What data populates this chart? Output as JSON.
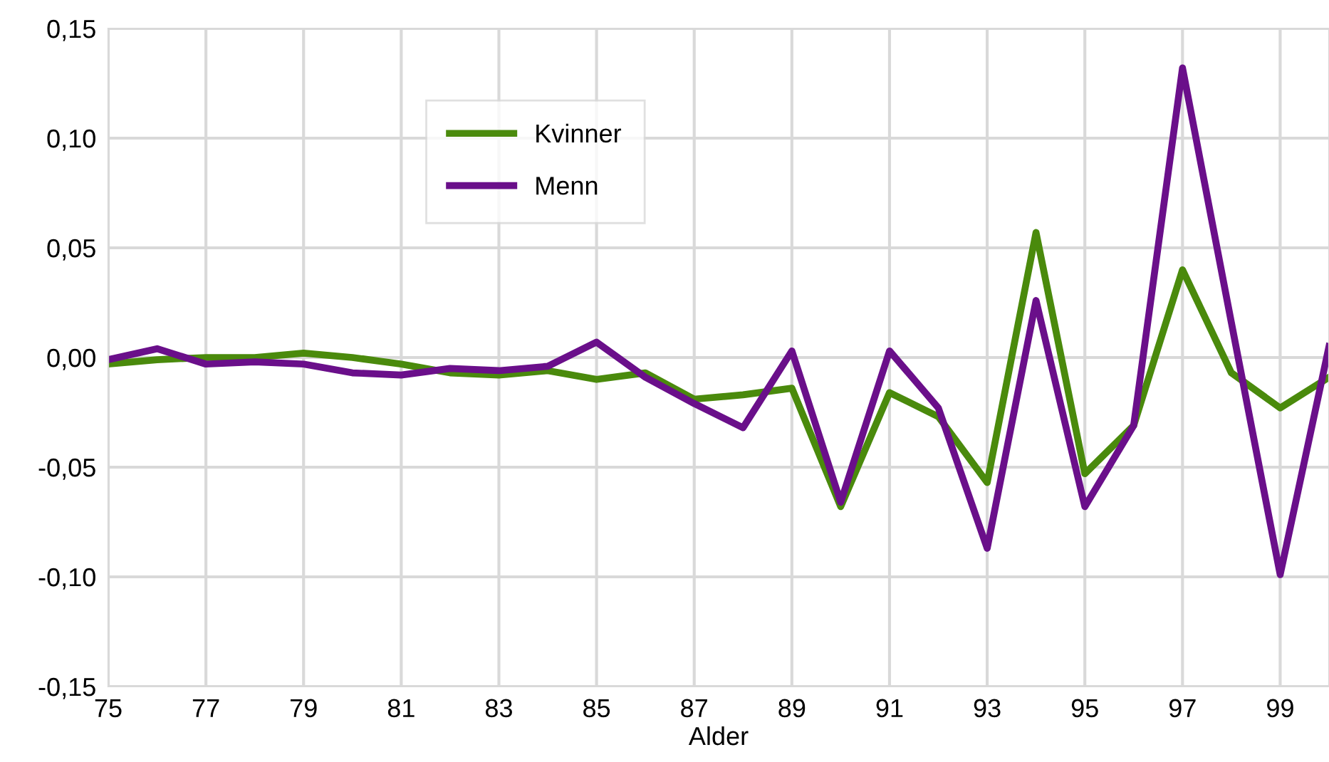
{
  "chart_data": {
    "type": "line",
    "xlabel": "Alder",
    "x": [
      75,
      76,
      77,
      78,
      79,
      80,
      81,
      82,
      83,
      84,
      85,
      86,
      87,
      88,
      89,
      90,
      91,
      92,
      93,
      94,
      95,
      96,
      97,
      98,
      99,
      100
    ],
    "series": [
      {
        "name": "Kvinner",
        "color": "#4a8a0c",
        "values": [
          -0.003,
          -0.001,
          0.0,
          0.0,
          0.002,
          0.0,
          -0.003,
          -0.007,
          -0.008,
          -0.006,
          -0.01,
          -0.007,
          -0.019,
          -0.017,
          -0.014,
          -0.068,
          -0.016,
          -0.027,
          -0.057,
          0.057,
          -0.053,
          -0.031,
          0.04,
          -0.007,
          -0.023,
          -0.009
        ]
      },
      {
        "name": "Menn",
        "color": "#6a0f8a",
        "values": [
          -0.001,
          0.004,
          -0.003,
          -0.002,
          -0.003,
          -0.007,
          -0.008,
          -0.005,
          -0.006,
          -0.004,
          0.007,
          -0.009,
          -0.021,
          -0.032,
          0.003,
          -0.066,
          0.003,
          -0.023,
          -0.087,
          0.026,
          -0.068,
          -0.031,
          0.132,
          0.016,
          -0.099,
          0.005
        ]
      }
    ],
    "xlim": [
      75,
      100
    ],
    "xticks": [
      75,
      77,
      79,
      81,
      83,
      85,
      87,
      89,
      91,
      93,
      95,
      97,
      99
    ],
    "ylim": [
      -0.15,
      0.15
    ],
    "yticks": [
      {
        "value": -0.15,
        "label": "-0,15"
      },
      {
        "value": -0.1,
        "label": "-0,10"
      },
      {
        "value": -0.05,
        "label": "-0,05"
      },
      {
        "value": 0,
        "label": "0,00"
      },
      {
        "value": 0.05,
        "label": "0,05"
      },
      {
        "value": 0.1,
        "label": "0,10"
      },
      {
        "value": 0.15,
        "label": "0,15"
      }
    ],
    "grid": true,
    "legend": "top left",
    "marker": "none",
    "line_style": "solid"
  }
}
